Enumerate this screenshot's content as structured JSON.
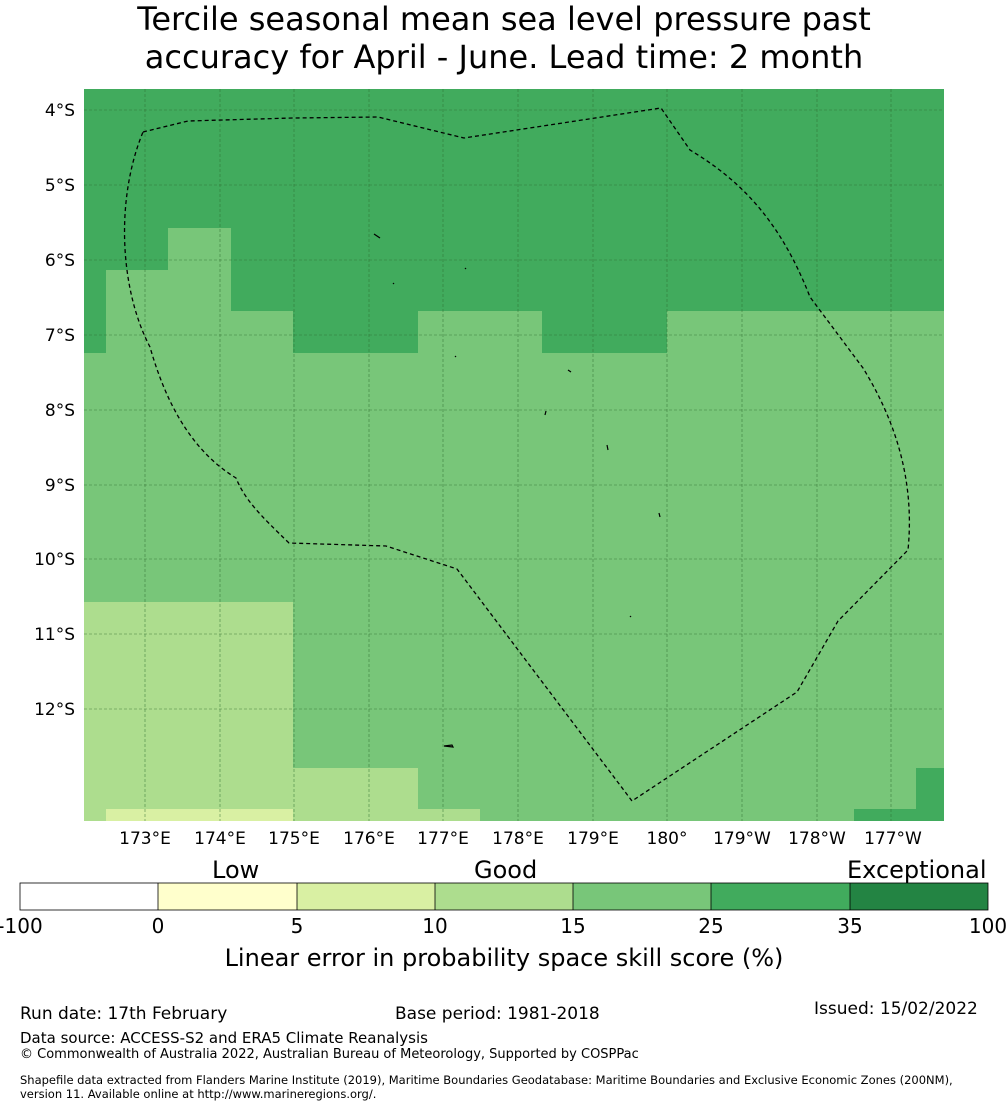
{
  "title_line1": "Tercile seasonal mean sea level pressure past",
  "title_line2": "accuracy for April - June. Lead time: 2 month",
  "map": {
    "lat_labels": [
      "4°S",
      "5°S",
      "6°S",
      "7°S",
      "8°S",
      "9°S",
      "10°S",
      "11°S",
      "12°S"
    ],
    "lon_labels": [
      "173°E",
      "174°E",
      "175°E",
      "176°E",
      "177°E",
      "178°E",
      "179°E",
      "180°",
      "179°W",
      "178°W",
      "177°W"
    ]
  },
  "colorbar": {
    "category_labels": {
      "low": "Low",
      "good": "Good",
      "exceptional": "Exceptional"
    },
    "ticks": [
      "-100",
      "0",
      "5",
      "10",
      "15",
      "25",
      "35",
      "100"
    ],
    "colors": [
      "#ffffff",
      "#ffffcc",
      "#d9f0a3",
      "#addd8e",
      "#78c679",
      "#41ab5d",
      "#238443"
    ],
    "title": "Linear error in probability space skill score (%)"
  },
  "footer": {
    "run_date": "Run date: 17th February",
    "base_period": "Base period: 1981-2018",
    "issued": "Issued: 15/02/2022",
    "data_source": "Data source: ACCESS-S2 and ERA5 Climate Reanalysis",
    "copyright": "© Commonwealth of Australia 2022, Australian Bureau of Meteorology, Supported by COSPPac",
    "shapefile_line1": "Shapefile data extracted from Flanders Marine Institute (2019), Maritime Boundaries Geodatabase: Maritime Boundaries and Exclusive Economic Zones (200NM),",
    "shapefile_line2": "version 11. Available online at http://www.marineregions.org/."
  }
}
